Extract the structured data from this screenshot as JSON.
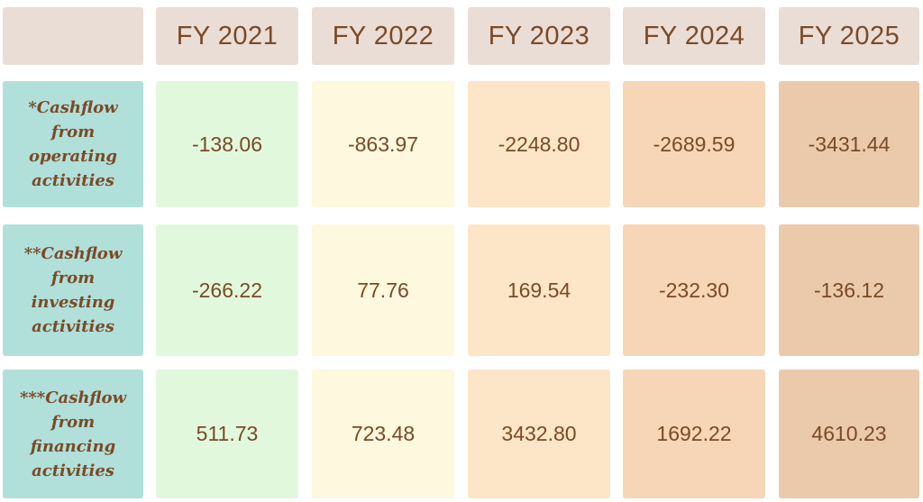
{
  "chart_data": {
    "type": "table",
    "columns": [
      "FY 2021",
      "FY 2022",
      "FY 2023",
      "FY 2024",
      "FY 2025"
    ],
    "rows": [
      {
        "label": "*Cashflow from operating activities",
        "values": [
          "-138.06",
          "-863.97",
          "-2248.80",
          "-2689.59",
          "-3431.44"
        ]
      },
      {
        "label": "**Cashflow from investing activities",
        "values": [
          "-266.22",
          "77.76",
          "169.54",
          "-232.30",
          "-136.12"
        ]
      },
      {
        "label": "***Cashflow from financing activities",
        "values": [
          "511.73",
          "723.48",
          "3432.80",
          "1692.22",
          "4610.23"
        ]
      }
    ]
  },
  "colors": {
    "header": "#eaddd5",
    "row_label": "#b1e0da",
    "text": "#7a4a26",
    "column_fills": [
      "#e2f8dd",
      "#fdf8de",
      "#fde5c7",
      "#f6d6b6",
      "#ebcaac"
    ]
  }
}
